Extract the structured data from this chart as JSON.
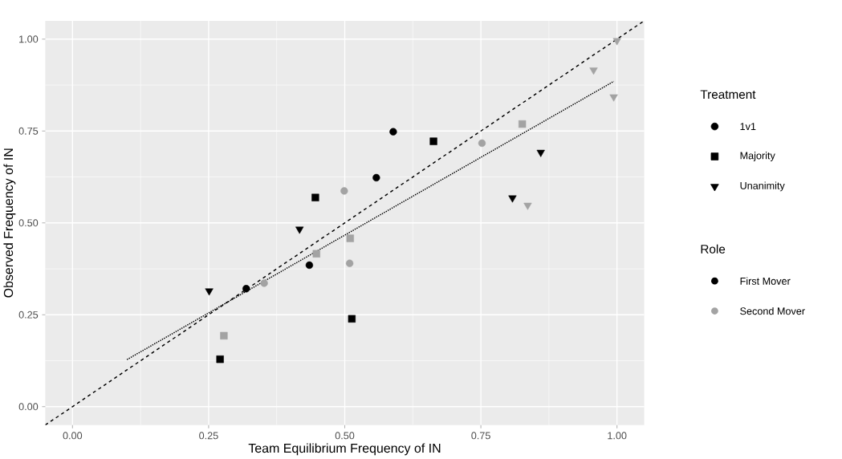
{
  "chart_data": {
    "type": "scatter",
    "xlabel": "Team Equilibrium Frequency of IN",
    "ylabel": "Observed Frequency of IN",
    "legend_title": "Treatment",
    "xlim": [
      -0.05,
      1.05
    ],
    "ylim": [
      -0.05,
      1.05
    ],
    "xticks": [
      {
        "value": 0,
        "label": "0.00"
      },
      {
        "value": 0.25,
        "label": "0.25"
      },
      {
        "value": 0.5,
        "label": "0.50"
      },
      {
        "value": 0.75,
        "label": "0.75"
      },
      {
        "value": 1,
        "label": "1.00"
      }
    ],
    "yticks": [
      {
        "value": 0,
        "label": "0.00"
      },
      {
        "value": 0.25,
        "label": "0.25"
      },
      {
        "value": 0.5,
        "label": "0.50"
      },
      {
        "value": 0.75,
        "label": "0.75"
      },
      {
        "value": 1,
        "label": "1.00"
      }
    ],
    "grid": true,
    "legend": "right",
    "annotations": [
      "Role",
      "First Mover",
      "Second Mover"
    ],
    "series": [
      {
        "name": "1v1",
        "marker": "circle",
        "x": [
          0.319,
          0.435,
          0.558,
          0.589,
          0.352,
          0.499,
          0.509,
          0.752
        ],
        "values": [
          0.321,
          0.385,
          0.623,
          0.748,
          0.336,
          0.587,
          0.39,
          0.717
        ],
        "colors": [
          "#000000",
          "#000000",
          "#000000",
          "#000000",
          "#a3a3a3",
          "#a3a3a3",
          "#a3a3a3",
          "#a3a3a3"
        ]
      },
      {
        "name": "Majority",
        "marker": "square",
        "x": [
          0.271,
          0.446,
          0.513,
          0.663,
          0.278,
          0.448,
          0.51,
          0.826
        ],
        "values": [
          0.129,
          0.569,
          0.239,
          0.722,
          0.193,
          0.416,
          0.458,
          0.769
        ],
        "colors": [
          "#000000",
          "#000000",
          "#000000",
          "#000000",
          "#a3a3a3",
          "#a3a3a3",
          "#a3a3a3",
          "#a3a3a3"
        ]
      },
      {
        "name": "Unanimity",
        "marker": "triangle",
        "x": [
          0.251,
          0.417,
          0.808,
          0.86,
          0.836,
          0.957,
          0.994,
          1.0
        ],
        "values": [
          0.315,
          0.483,
          0.568,
          0.692,
          0.548,
          0.916,
          0.843,
          0.996
        ],
        "colors": [
          "#000000",
          "#000000",
          "#000000",
          "#000000",
          "#a3a3a3",
          "#a3a3a3",
          "#a3a3a3",
          "#a3a3a3"
        ]
      },
      {
        "type": "line",
        "line_style": "dashed",
        "color": "#000000",
        "x": [
          -0.05,
          1.05
        ],
        "values": [
          -0.05,
          1.05
        ]
      },
      {
        "type": "line",
        "line_style": "dotted",
        "color": "#000000",
        "x": [
          0.1,
          0.994
        ],
        "values": [
          0.128,
          0.885
        ]
      }
    ]
  }
}
